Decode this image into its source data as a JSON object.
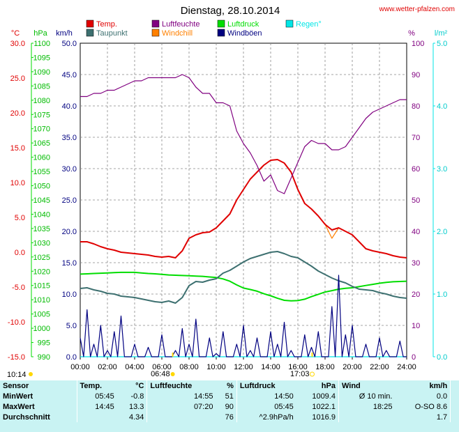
{
  "title": "Dienstag, 28.10.2014",
  "source": "www.wetter-pfalzen.com",
  "legend": [
    {
      "label": "Temp.",
      "color": "#e00000"
    },
    {
      "label": "Luftfeuchte",
      "color": "#800080"
    },
    {
      "label": "Luftdruck",
      "color": "#00dd00"
    },
    {
      "label": "Regen°",
      "color": "#00e6e6"
    },
    {
      "label": "Taupunkt",
      "color": "#3d7070"
    },
    {
      "label": "Windchill",
      "color": "#ff8000"
    },
    {
      "label": "Windböen",
      "color": "#000080"
    }
  ],
  "units": {
    "temp": "°C",
    "pressure": "hPa",
    "wind": "km/h",
    "humidity": "%",
    "rain": "l/m²"
  },
  "axes": {
    "temp_ticks": [
      "30.0",
      "25.0",
      "20.0",
      "15.0",
      "10.0",
      "5.0",
      "0.0",
      "-5.0",
      "-10.0",
      "-15.0"
    ],
    "pressure_ticks": [
      "1100",
      "1095",
      "1090",
      "1085",
      "1080",
      "1075",
      "1070",
      "1065",
      "1060",
      "1055",
      "1050",
      "1045",
      "1040",
      "1035",
      "1030",
      "1025",
      "1020",
      "1015",
      "1010",
      "1005",
      "1000",
      "995",
      "990"
    ],
    "wind_ticks": [
      "50.0",
      "45.0",
      "40.0",
      "35.0",
      "30.0",
      "25.0",
      "20.0",
      "15.0",
      "10.0",
      "5.0",
      "0.0"
    ],
    "humidity_ticks": [
      "100",
      "90",
      "80",
      "70",
      "60",
      "50",
      "40",
      "30",
      "20",
      "10",
      "0"
    ],
    "rain_ticks": [
      "5.0",
      "4.0",
      "3.0",
      "2.0",
      "1.0",
      "0.0"
    ],
    "x_ticks": [
      "00:00",
      "02:00",
      "04:00",
      "06:00",
      "08:00",
      "10:00",
      "12:00",
      "14:00",
      "16:00",
      "18:00",
      "20:00",
      "22:00",
      "24:00"
    ]
  },
  "sun": {
    "moonrise": "10:14",
    "sunrise": "06:48",
    "sunset": "17:03"
  },
  "chart_data": {
    "type": "line",
    "x_hours": [
      0,
      0.5,
      1,
      1.5,
      2,
      2.5,
      3,
      3.5,
      4,
      4.5,
      5,
      5.5,
      6,
      6.5,
      7,
      7.5,
      8,
      8.5,
      9,
      9.5,
      10,
      10.5,
      11,
      11.5,
      12,
      12.5,
      13,
      13.5,
      14,
      14.5,
      15,
      15.5,
      16,
      16.5,
      17,
      17.5,
      18,
      18.5,
      19,
      19.5,
      20,
      20.5,
      21,
      21.5,
      22,
      22.5,
      23,
      23.5,
      24
    ],
    "series": [
      {
        "name": "Temp.",
        "axis": "temp",
        "values": [
          1.5,
          1.5,
          1.2,
          0.8,
          0.5,
          0.3,
          0.0,
          -0.1,
          -0.2,
          -0.3,
          -0.4,
          -0.6,
          -0.7,
          -0.6,
          -0.8,
          0.2,
          2.0,
          2.5,
          2.8,
          2.9,
          3.5,
          4.5,
          5.5,
          7.5,
          9.0,
          10.5,
          11.5,
          12.5,
          13.2,
          13.3,
          12.8,
          11.5,
          9.0,
          7.0,
          6.2,
          5.2,
          4.0,
          3.2,
          3.5,
          3.0,
          2.5,
          1.5,
          0.5,
          0.2,
          0.0,
          -0.2,
          -0.5,
          -0.7,
          -0.8
        ]
      },
      {
        "name": "Taupunkt",
        "axis": "temp",
        "values": [
          -5.2,
          -5.1,
          -5.4,
          -5.6,
          -5.9,
          -6.0,
          -6.3,
          -6.4,
          -6.5,
          -6.7,
          -6.9,
          -7.1,
          -7.2,
          -7.0,
          -7.3,
          -6.5,
          -4.8,
          -4.2,
          -4.3,
          -4.0,
          -3.8,
          -3.0,
          -2.6,
          -2.0,
          -1.4,
          -0.9,
          -0.6,
          -0.3,
          0.0,
          0.1,
          -0.2,
          -0.6,
          -0.8,
          -1.4,
          -2.0,
          -2.7,
          -3.2,
          -3.7,
          -4.1,
          -4.4,
          -4.9,
          -5.3,
          -5.4,
          -5.5,
          -5.8,
          -6.0,
          -6.3,
          -6.5,
          -6.6
        ]
      },
      {
        "name": "Windchill",
        "axis": "temp",
        "values": [
          1.5,
          1.5,
          1.2,
          0.8,
          0.5,
          0.3,
          0.0,
          -0.1,
          -0.2,
          -0.3,
          -0.4,
          -0.6,
          -0.7,
          -0.6,
          -0.8,
          0.2,
          2.0,
          2.5,
          2.8,
          2.9,
          3.5,
          4.5,
          5.5,
          7.5,
          9.0,
          10.5,
          11.5,
          12.5,
          13.2,
          13.3,
          12.8,
          11.5,
          9.0,
          7.0,
          6.2,
          5.2,
          4.0,
          2.0,
          3.5,
          3.0,
          2.5,
          1.5,
          0.5,
          0.2,
          0.0,
          -0.2,
          -0.5,
          -0.7,
          -0.8
        ]
      },
      {
        "name": "Luftfeuchte",
        "axis": "humidity",
        "values": [
          83,
          83,
          84,
          84,
          85,
          85,
          86,
          87,
          88,
          88,
          89,
          89,
          89,
          89,
          89,
          90,
          89,
          86,
          84,
          84,
          81,
          81,
          80,
          72,
          68,
          65,
          61,
          56,
          58,
          53,
          52,
          57,
          62,
          67,
          69,
          68,
          68,
          66,
          66,
          67,
          70,
          73,
          76,
          78,
          79,
          80,
          81,
          82,
          82
        ]
      },
      {
        "name": "Luftdruck",
        "axis": "pressure",
        "values": [
          1019.0,
          1019.1,
          1019.2,
          1019.3,
          1019.4,
          1019.5,
          1019.6,
          1019.6,
          1019.6,
          1019.4,
          1019.2,
          1019.1,
          1018.9,
          1018.7,
          1018.6,
          1018.5,
          1018.4,
          1018.3,
          1018.2,
          1018.0,
          1017.8,
          1017.3,
          1016.5,
          1015.2,
          1014.1,
          1013.6,
          1013.0,
          1012.1,
          1011.4,
          1010.5,
          1009.8,
          1009.6,
          1009.7,
          1010.2,
          1011.1,
          1011.9,
          1012.7,
          1013.2,
          1013.7,
          1014.0,
          1014.2,
          1014.6,
          1015.0,
          1015.4,
          1015.8,
          1016.1,
          1016.3,
          1016.4,
          1016.5
        ]
      },
      {
        "name": "Windböen",
        "axis": "wind",
        "values": [
          3.0,
          7.5,
          2.0,
          5.0,
          1.0,
          4.0,
          6.5,
          0.0,
          2.0,
          0.0,
          1.5,
          0.0,
          3.5,
          0.0,
          1.0,
          4.5,
          2.0,
          6.0,
          0.0,
          3.0,
          0.5,
          4.0,
          0.0,
          2.0,
          5.0,
          1.0,
          3.0,
          0.0,
          4.0,
          2.0,
          5.5,
          1.0,
          0.0,
          3.5,
          1.5,
          4.0,
          0.0,
          8.0,
          13.0,
          3.5,
          5.0,
          0.0,
          2.0,
          0.0,
          3.0,
          1.0,
          0.0,
          2.5,
          0.0
        ]
      },
      {
        "name": "Regen°",
        "axis": "rain",
        "values": [
          0,
          0,
          0,
          0,
          0,
          0,
          0,
          0,
          0,
          0,
          0,
          0,
          0,
          0,
          0,
          0,
          0,
          0,
          0,
          0,
          0,
          0,
          0,
          0,
          0,
          0,
          0,
          0,
          0,
          0,
          0,
          0,
          0,
          0,
          0,
          0,
          0,
          0,
          0,
          0,
          0,
          0,
          0,
          0,
          0,
          0,
          0,
          0,
          0
        ]
      }
    ],
    "axis_ranges": {
      "temp": [
        -15,
        30
      ],
      "pressure": [
        990,
        1100
      ],
      "wind": [
        0,
        50
      ],
      "humidity": [
        0,
        100
      ],
      "rain": [
        0,
        5
      ]
    },
    "x_range": [
      0,
      24
    ],
    "grid": true
  },
  "stats": {
    "headers": {
      "sensor": "Sensor",
      "temp": "Temp.",
      "temp_unit": "°C",
      "hum": "Luftfeuchte",
      "hum_unit": "%",
      "press": "Luftdruck",
      "press_unit": "hPa",
      "wind": "Wind",
      "wind_unit": "km/h"
    },
    "rows": [
      {
        "label": "MinWert",
        "t_time": "05:45",
        "t_val": "-0.8",
        "h_time": "14:55",
        "h_val": "51",
        "p_time": "14:50",
        "p_val": "1009.4",
        "w_time": "Ø 10 min.",
        "w_val": "0.0"
      },
      {
        "label": "MaxWert",
        "t_time": "14:45",
        "t_val": "13.3",
        "h_time": "07:20",
        "h_val": "90",
        "p_time": "05:45",
        "p_val": "1022.1",
        "w_time": "18:25",
        "w_val": "O-SO 8.6"
      },
      {
        "label": "Durchschnitt",
        "t_time": "",
        "t_val": "4.34",
        "h_time": "",
        "h_val": "76",
        "p_time": "^2.9hPa/h",
        "p_val": "1016.9",
        "w_time": "",
        "w_val": "1.7"
      }
    ]
  }
}
